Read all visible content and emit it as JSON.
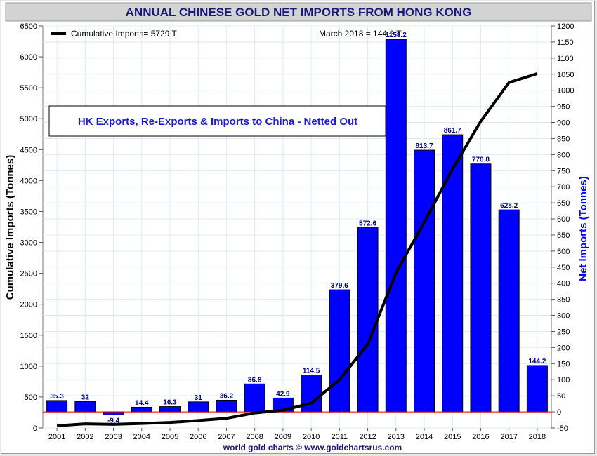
{
  "chart_data": {
    "type": "bar",
    "title": "ANNUAL CHINESE GOLD NET IMPORTS FROM HONG KONG",
    "subtitle": "HK Exports, Re-Exports & Imports to China - Netted Out",
    "ylabel_left": "Cumulative Imports (Tonnes)",
    "ylabel_right": "Net Imports (Tonnes)",
    "footer": "world gold charts © www.goldchartsrus.com",
    "legend_label": "Cumulative Imports= 5729 T",
    "latest_note": "March 2018 = 144.2 T",
    "categories": [
      "2001",
      "2002",
      "2003",
      "2004",
      "2005",
      "2006",
      "2007",
      "2008",
      "2009",
      "2010",
      "2011",
      "2012",
      "2013",
      "2014",
      "2015",
      "2016",
      "2017",
      "2018"
    ],
    "series": [
      {
        "name": "Net Imports",
        "axis": "right",
        "color": "#0000ff",
        "values": [
          35.3,
          32,
          -9.4,
          14.4,
          16.3,
          31,
          36.2,
          86.8,
          42.9,
          114.5,
          379.6,
          572.6,
          1158.2,
          813.7,
          861.7,
          770.8,
          628.2,
          144.2
        ],
        "labels": [
          "35.3",
          "32",
          "-9.4",
          "14.4",
          "16.3",
          "31",
          "36.2",
          "86.8",
          "42.9",
          "114.5",
          "379.6",
          "572.6",
          "1158.2",
          "813.7",
          "861.7",
          "770.8",
          "628.2",
          "144.2"
        ]
      },
      {
        "name": "Cumulative Imports",
        "axis": "left",
        "color": "#000000",
        "values": [
          35,
          67,
          58,
          72,
          89,
          120,
          156,
          243,
          286,
          400,
          780,
          1352,
          2511,
          3324,
          4186,
          4957,
          5585,
          5729
        ]
      }
    ],
    "ylim_left": [
      0,
      6500
    ],
    "ylim_right": [
      -50,
      1200
    ],
    "yticks_left": [
      "0",
      "500",
      "1000",
      "1500",
      "2000",
      "2500",
      "3000",
      "3500",
      "4000",
      "4500",
      "5000",
      "5500",
      "6000",
      "6500"
    ],
    "yticks_right": [
      "-50",
      "0",
      "50",
      "100",
      "150",
      "200",
      "250",
      "300",
      "350",
      "400",
      "450",
      "500",
      "550",
      "600",
      "650",
      "700",
      "750",
      "800",
      "850",
      "900",
      "950",
      "1000",
      "1050",
      "1100",
      "1150",
      "1200"
    ],
    "grid": true,
    "legend_position": "top-left"
  }
}
